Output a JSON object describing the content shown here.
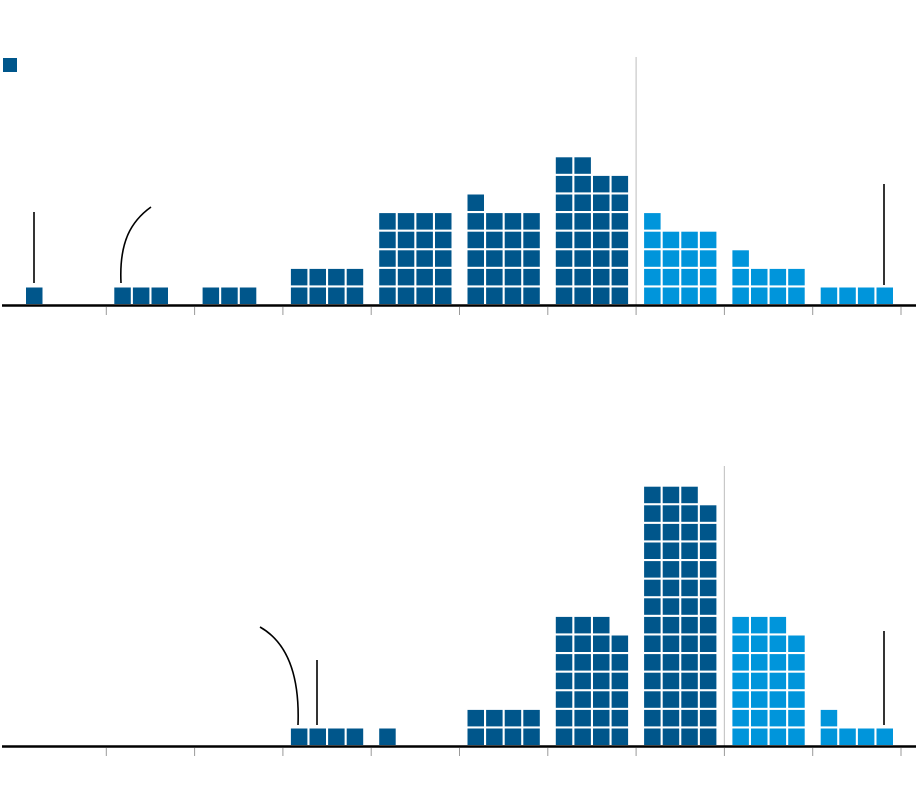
{
  "colors": {
    "dark": "#00568b",
    "light": "#0095db",
    "axis": "#000000",
    "tick": "#9a9a9a",
    "divider": "#c8c8c8",
    "callout": "#000000"
  },
  "legend": {
    "swatch_color": "#00568b"
  },
  "chart_data": [
    {
      "type": "waffle-histogram",
      "title": "",
      "xlabel": "",
      "ylabel": "",
      "bins": 10,
      "counts": [
        1,
        3,
        3,
        8,
        20,
        21,
        30,
        17,
        9,
        4
      ],
      "bin_colors": [
        "dark",
        "dark",
        "dark",
        "dark",
        "dark",
        "dark",
        "dark",
        "light",
        "light",
        "light"
      ],
      "grid": false,
      "annotations": [
        {
          "bin": 0,
          "style": "straight-line"
        },
        {
          "bin": 1,
          "style": "curved-line"
        },
        {
          "bin": 9,
          "style": "straight-line"
        }
      ]
    },
    {
      "type": "waffle-histogram",
      "title": "",
      "xlabel": "",
      "ylabel": "",
      "bins": 10,
      "counts": [
        0,
        0,
        0,
        4,
        1,
        8,
        27,
        55,
        27,
        5
      ],
      "bin_colors": [
        "dark",
        "dark",
        "dark",
        "dark",
        "dark",
        "dark",
        "dark",
        "dark",
        "light",
        "light"
      ],
      "grid": false,
      "annotations": [
        {
          "bin": 3,
          "style": "curved-line"
        },
        {
          "bin": 3,
          "style": "straight-line"
        },
        {
          "bin": 9,
          "style": "straight-line"
        }
      ]
    }
  ]
}
